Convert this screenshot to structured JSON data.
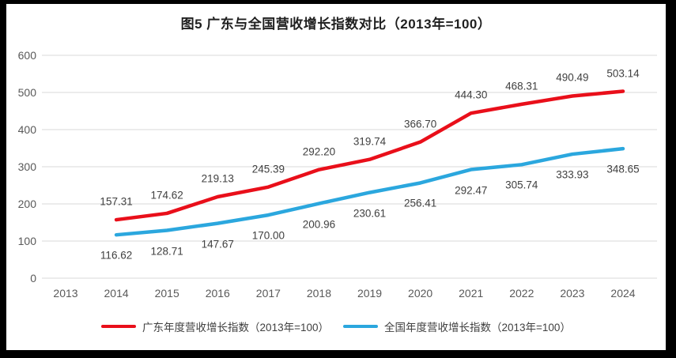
{
  "chart_data": {
    "type": "line",
    "title": "图5  广东与全国营收增长指数对比（2013年=100）",
    "categories": [
      "2013",
      "2014",
      "2015",
      "2016",
      "2017",
      "2018",
      "2019",
      "2020",
      "2021",
      "2022",
      "2023",
      "2024"
    ],
    "series": [
      {
        "name": "广东年度营收增长指数（2013年=100）",
        "color": "#e90f1a",
        "start_category": "2014",
        "label_position": "above",
        "values": [
          157.31,
          174.62,
          219.13,
          245.39,
          292.2,
          319.74,
          366.7,
          444.3,
          468.31,
          490.49,
          503.14
        ]
      },
      {
        "name": "全国年度营收增长指数（2013年=100）",
        "color": "#2ba7de",
        "start_category": "2014",
        "label_position": "below",
        "values": [
          116.62,
          128.71,
          147.67,
          170.0,
          200.96,
          230.61,
          256.41,
          292.47,
          305.74,
          333.93,
          348.65
        ]
      }
    ],
    "yticks": [
      0,
      100,
      200,
      300,
      400,
      500,
      600
    ],
    "ylim": [
      0,
      600
    ],
    "grid": true,
    "legend_position": "bottom",
    "value_label_decimals": 2
  },
  "colors": {
    "grid": "#d9d9d9",
    "axis_text": "#595959",
    "label_text": "#404040",
    "frame": "#000000",
    "background": "#ffffff"
  }
}
